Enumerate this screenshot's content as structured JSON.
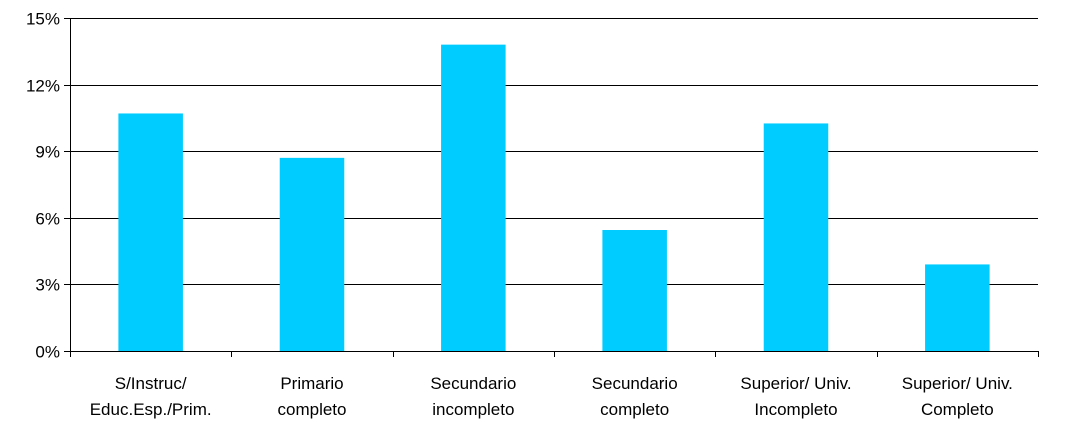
{
  "chart_data": {
    "type": "bar",
    "categories": [
      [
        "S/Instruc/",
        "Educ.Esp./Prim."
      ],
      [
        "Primario",
        "completo"
      ],
      [
        "Secundario",
        "incompleto"
      ],
      [
        "Secundario",
        "completo"
      ],
      [
        "Superior/ Univ.",
        "Incompleto"
      ],
      [
        "Superior/ Univ.",
        "Completo"
      ]
    ],
    "values": [
      10.7,
      8.7,
      13.8,
      5.45,
      10.25,
      3.9
    ],
    "ylim": [
      0,
      15
    ],
    "yticks": [
      0,
      3,
      6,
      9,
      12,
      15
    ],
    "ytick_labels": [
      "0%",
      "3%",
      "6%",
      "9%",
      "12%",
      "15%"
    ],
    "grid": true,
    "legend": "none",
    "bar_color": "#00CCFF",
    "grid_color": "#000000"
  }
}
